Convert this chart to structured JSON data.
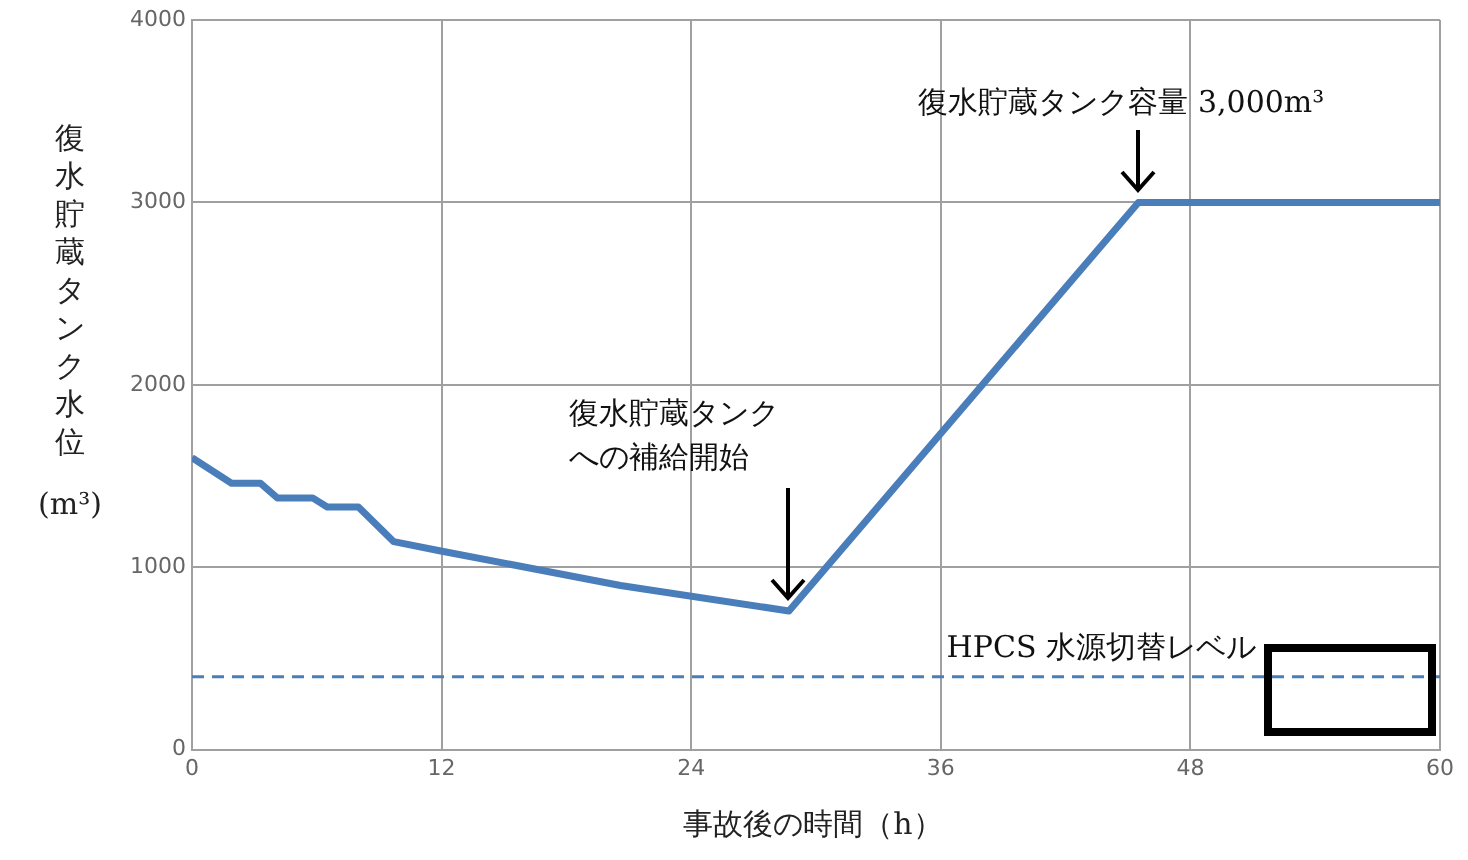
{
  "chart_data": {
    "type": "line",
    "xlabel": "事故後の時間（h）",
    "ylabel": "復水貯蔵タンク水位(m³)",
    "series": [
      {
        "color": "#4a7ebb",
        "x": [
          0,
          1.9,
          3.3,
          4.1,
          5.8,
          6.5,
          8.0,
          9.7,
          11.9,
          20.6,
          28.7,
          45.5,
          60
        ],
        "values": [
          1600,
          1460,
          1460,
          1380,
          1380,
          1330,
          1330,
          1140,
          1090,
          900,
          760,
          3000,
          3000
        ]
      }
    ],
    "xlim": [
      0,
      60
    ],
    "xticks": [
      0,
      12,
      24,
      36,
      48,
      60
    ],
    "ylim": [
      0,
      4000
    ],
    "yticks": [
      0,
      1000,
      2000,
      3000,
      4000
    ],
    "grid": true,
    "legend": false,
    "marker": "none",
    "line_style": "solid",
    "ref_lines": [
      {
        "axis": "y",
        "value": 400,
        "label": "HPCS 水源切替レベル",
        "color": "#4a7ebb",
        "line_style": "dashed"
      }
    ],
    "annotations": [
      {
        "text": "復水貯蔵タンクへの補給開始",
        "x": 28.7,
        "y": 760
      },
      {
        "text": "復水貯蔵タンク容量 3,000m³",
        "x": 45.5,
        "y": 3000
      }
    ]
  }
}
